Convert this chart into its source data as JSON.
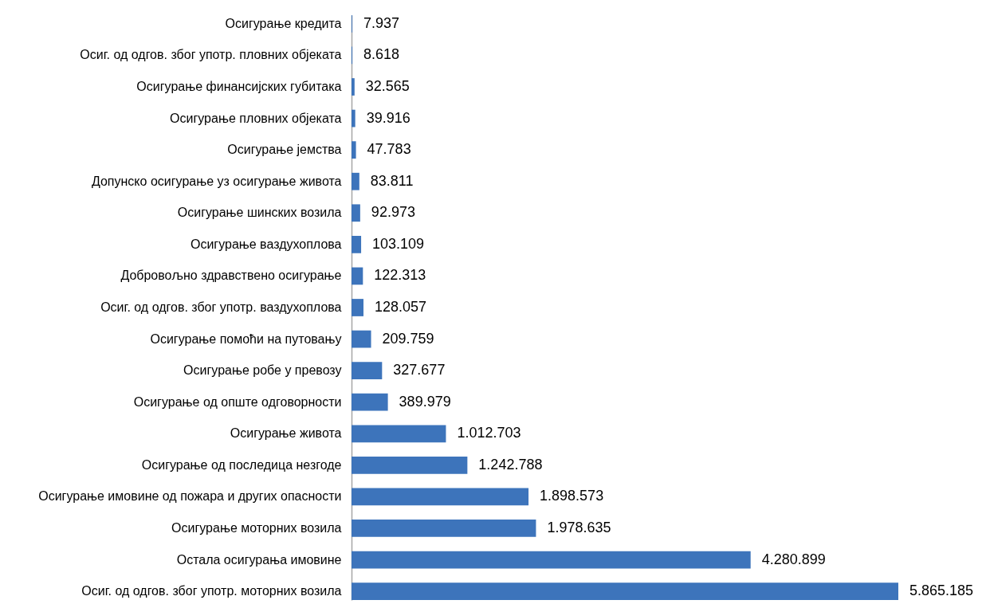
{
  "chart_data": {
    "type": "bar",
    "orientation": "horizontal",
    "color": "#3d74bb",
    "categories": [
      "Осигурање кредита",
      "Осиг. од одгов. због употр. пловних објеката",
      "Осигурање финансијских губитака",
      "Осигурање пловних објеката",
      "Осигурање јемства",
      "Допунско осигурање уз осигурање живота",
      "Осигурање шинских возила",
      "Осигурање ваздухоплова",
      "Добровољно здравствено осигурање",
      "Осиг. од одгов. због употр. ваздухоплова",
      "Осигурање помоћи на путовању",
      "Осигурање робе у превозу",
      "Осигурање од опште одговорности",
      "Осигурање живота",
      "Осигурање од последица незгоде",
      "Осигурање имовине од пожара и других опасности",
      "Осигурање моторних возила",
      "Остала осигурања имовине",
      "Осиг. од одгов. због употр. моторних возила"
    ],
    "values": [
      7937,
      8618,
      32565,
      39916,
      47783,
      83811,
      92973,
      103109,
      122313,
      128057,
      209759,
      327677,
      389979,
      1012703,
      1242788,
      1898573,
      1978635,
      4280899,
      5865185
    ],
    "value_labels": [
      "7.937",
      "8.618",
      "32.565",
      "39.916",
      "47.783",
      "83.811",
      "92.973",
      "103.109",
      "122.313",
      "128.057",
      "209.759",
      "327.677",
      "389.979",
      "1.012.703",
      "1.242.788",
      "1.898.573",
      "1.978.635",
      "4.280.899",
      "5.865.185"
    ]
  }
}
